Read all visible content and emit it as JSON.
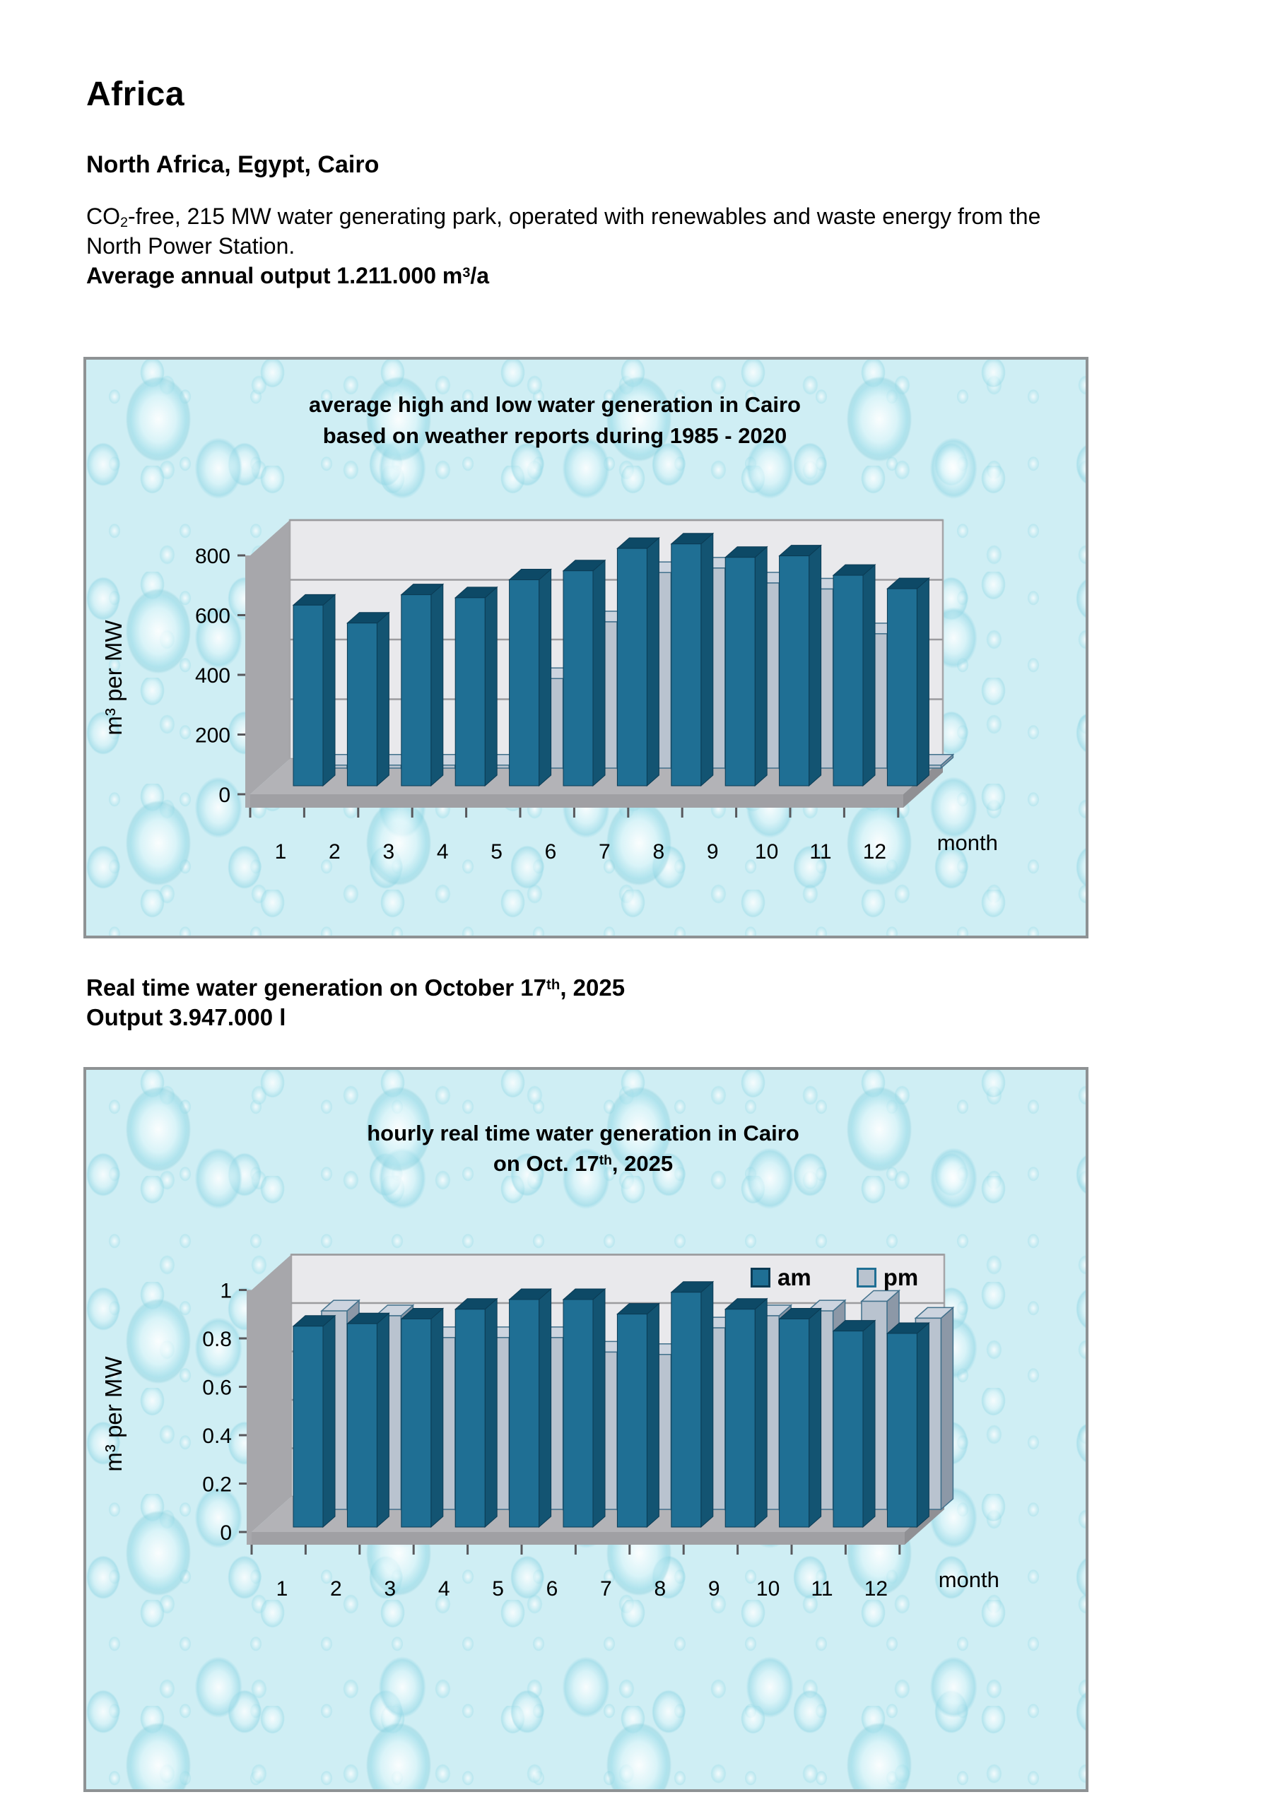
{
  "page": {
    "title": "Africa",
    "subtitle": "North Africa, Egypt, Cairo",
    "intro": {
      "co": "CO",
      "co_sub": "2",
      "line1_rest": "-free, 215 MW water generating park, operated with renewables and waste energy from the",
      "line2": "North Power Station.",
      "output_bold_prefix": "Average annual output 1.211.000 m",
      "output_bold_sup": "3",
      "output_bold_suffix": "/a"
    },
    "realtime": {
      "line1_prefix": "Real time water generation on October 17",
      "line1_sup": "th",
      "line1_suffix": ", 2025",
      "line2": "Output 3.947.000 l"
    }
  },
  "chart_data": [
    {
      "type": "bar",
      "title_line1": "average high and low water generation in Cairo",
      "title_line2": "based on weather reports during 1985 - 2020",
      "ylabel": "m³ per MW",
      "xlabel": "month",
      "ylim": [
        0,
        800
      ],
      "ytick_step": 200,
      "yticks": [
        "0",
        "200",
        "400",
        "600",
        "800"
      ],
      "categories": [
        "1",
        "2",
        "3",
        "4",
        "5",
        "6",
        "7",
        "8",
        "9",
        "10",
        "11",
        "12"
      ],
      "grid": true,
      "legend": false,
      "series": [
        {
          "name": "high",
          "row": "front",
          "values": [
            605,
            545,
            640,
            630,
            690,
            720,
            795,
            810,
            765,
            770,
            705,
            660
          ],
          "front": "#1f6f94",
          "top": "#0d4966",
          "side": "#135472",
          "outline": "#0b3b54"
        },
        {
          "name": "low",
          "row": "back",
          "values": [
            10,
            10,
            10,
            10,
            300,
            490,
            655,
            670,
            620,
            600,
            450,
            10
          ],
          "front": "#b9c3cf",
          "top": "#ccd4df",
          "side": "#8c98a7",
          "outline": "#41708b"
        }
      ]
    },
    {
      "type": "bar",
      "title_line1": "hourly real time water generation in Cairo",
      "title_line2_prefix": "on Oct. 17",
      "title_line2_sup": "th",
      "title_line2_suffix": ", 2025",
      "ylabel": "m³ per MW",
      "xlabel": "month",
      "ylim": [
        0,
        1
      ],
      "ytick_step": 0.2,
      "yticks": [
        "0",
        "0.2",
        "0.4",
        "0.6",
        "0.8",
        "1"
      ],
      "categories": [
        "1",
        "2",
        "3",
        "4",
        "5",
        "6",
        "7",
        "8",
        "9",
        "10",
        "11",
        "12"
      ],
      "grid": true,
      "legend": true,
      "series": [
        {
          "name": "am",
          "row": "front",
          "values": [
            0.83,
            0.84,
            0.86,
            0.9,
            0.94,
            0.94,
            0.88,
            0.97,
            0.9,
            0.86,
            0.81,
            0.8
          ],
          "front": "#1f6f94",
          "top": "#0d4966",
          "side": "#135472",
          "outline": "#0b3b54"
        },
        {
          "name": "pm",
          "row": "back",
          "values": [
            0.82,
            0.8,
            0.71,
            0.71,
            0.71,
            0.65,
            0.64,
            0.75,
            0.8,
            0.82,
            0.86,
            0.79
          ],
          "front": "#b9c3cf",
          "top": "#ccd4df",
          "side": "#8c98a7",
          "outline": "#41708b"
        }
      ]
    }
  ],
  "theme": {
    "wall": "#e9e9ec",
    "wall_edge": "#a5a5a8",
    "grid": "#9b9b9e",
    "left_wall": "#a7a7ab",
    "floor": "#b3b3b7",
    "floor_lip": "#a0a0a4",
    "floor_bevel": "#909094",
    "axis": "#58585c",
    "text": "#000000"
  }
}
